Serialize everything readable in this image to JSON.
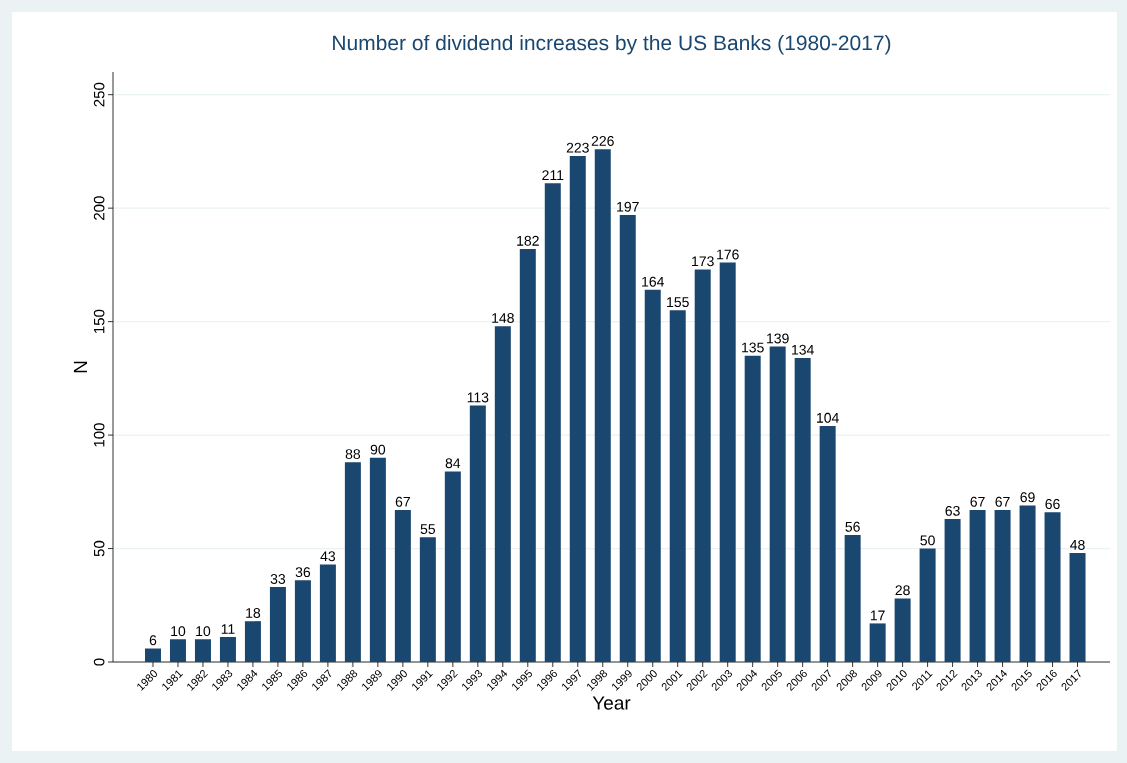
{
  "chart_data": {
    "type": "bar",
    "title": "Number of dividend increases by the US Banks (1980-2017)",
    "xlabel": "Year",
    "ylabel": "N",
    "categories": [
      "1980",
      "1981",
      "1982",
      "1983",
      "1984",
      "1985",
      "1986",
      "1987",
      "1988",
      "1989",
      "1990",
      "1991",
      "1992",
      "1993",
      "1994",
      "1995",
      "1996",
      "1997",
      "1998",
      "1999",
      "2000",
      "2001",
      "2002",
      "2003",
      "2004",
      "2005",
      "2006",
      "2007",
      "2008",
      "2009",
      "2010",
      "2011",
      "2012",
      "2013",
      "2014",
      "2015",
      "2016",
      "2017"
    ],
    "values": [
      6,
      10,
      10,
      11,
      18,
      33,
      36,
      43,
      88,
      90,
      67,
      55,
      84,
      113,
      148,
      182,
      211,
      223,
      226,
      197,
      164,
      155,
      173,
      176,
      135,
      139,
      134,
      104,
      56,
      17,
      28,
      50,
      63,
      67,
      67,
      69,
      66,
      48
    ],
    "color": "#1a476f",
    "data_labels": true,
    "grid": "y",
    "ylim": [
      0,
      260
    ],
    "yticks": [
      0,
      50,
      100,
      150,
      200,
      250
    ]
  }
}
